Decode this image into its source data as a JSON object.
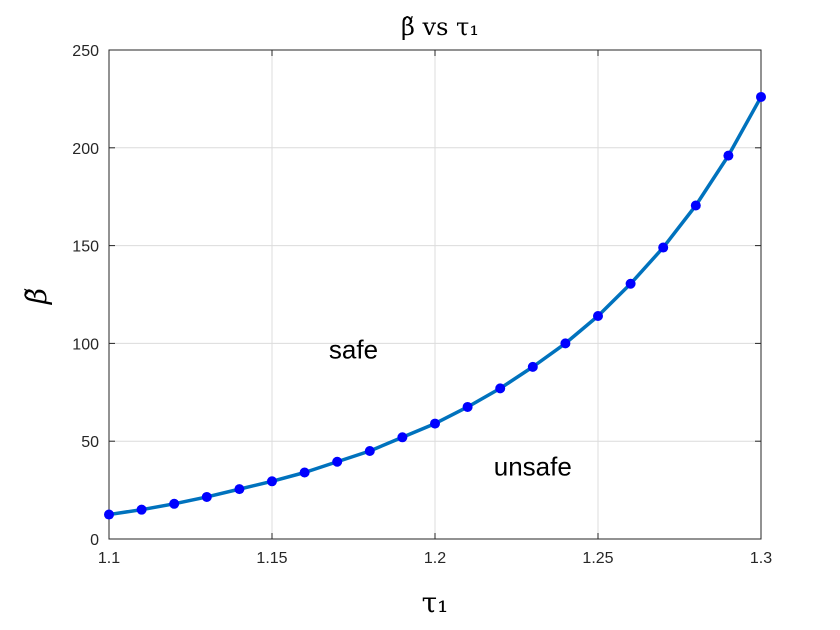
{
  "chart_data": {
    "type": "line",
    "title": "β̃ vs τ₁",
    "xlabel": "τ₁",
    "ylabel": "β̃",
    "xlim": [
      1.1,
      1.3
    ],
    "ylim": [
      0,
      250
    ],
    "xticks": [
      "1.1",
      "1.15",
      "1.2",
      "1.25",
      "1.3"
    ],
    "yticks": [
      "0",
      "50",
      "100",
      "150",
      "200",
      "250"
    ],
    "grid": true,
    "line_color": "#0072BD",
    "marker_color": "#0000FF",
    "x": [
      1.1,
      1.11,
      1.12,
      1.13,
      1.14,
      1.15,
      1.16,
      1.17,
      1.18,
      1.19,
      1.2,
      1.21,
      1.22,
      1.23,
      1.24,
      1.25,
      1.26,
      1.27,
      1.28,
      1.29,
      1.3
    ],
    "y": [
      12.5,
      15,
      18,
      21.5,
      25.5,
      29.5,
      34,
      39.5,
      45,
      52,
      59,
      67.5,
      77,
      88,
      100,
      114,
      130.5,
      149,
      170.5,
      196,
      226
    ],
    "annotations": [
      {
        "text": "safe",
        "x": 1.175,
        "y": 97
      },
      {
        "text": "unsafe",
        "x": 1.23,
        "y": 37
      }
    ]
  }
}
